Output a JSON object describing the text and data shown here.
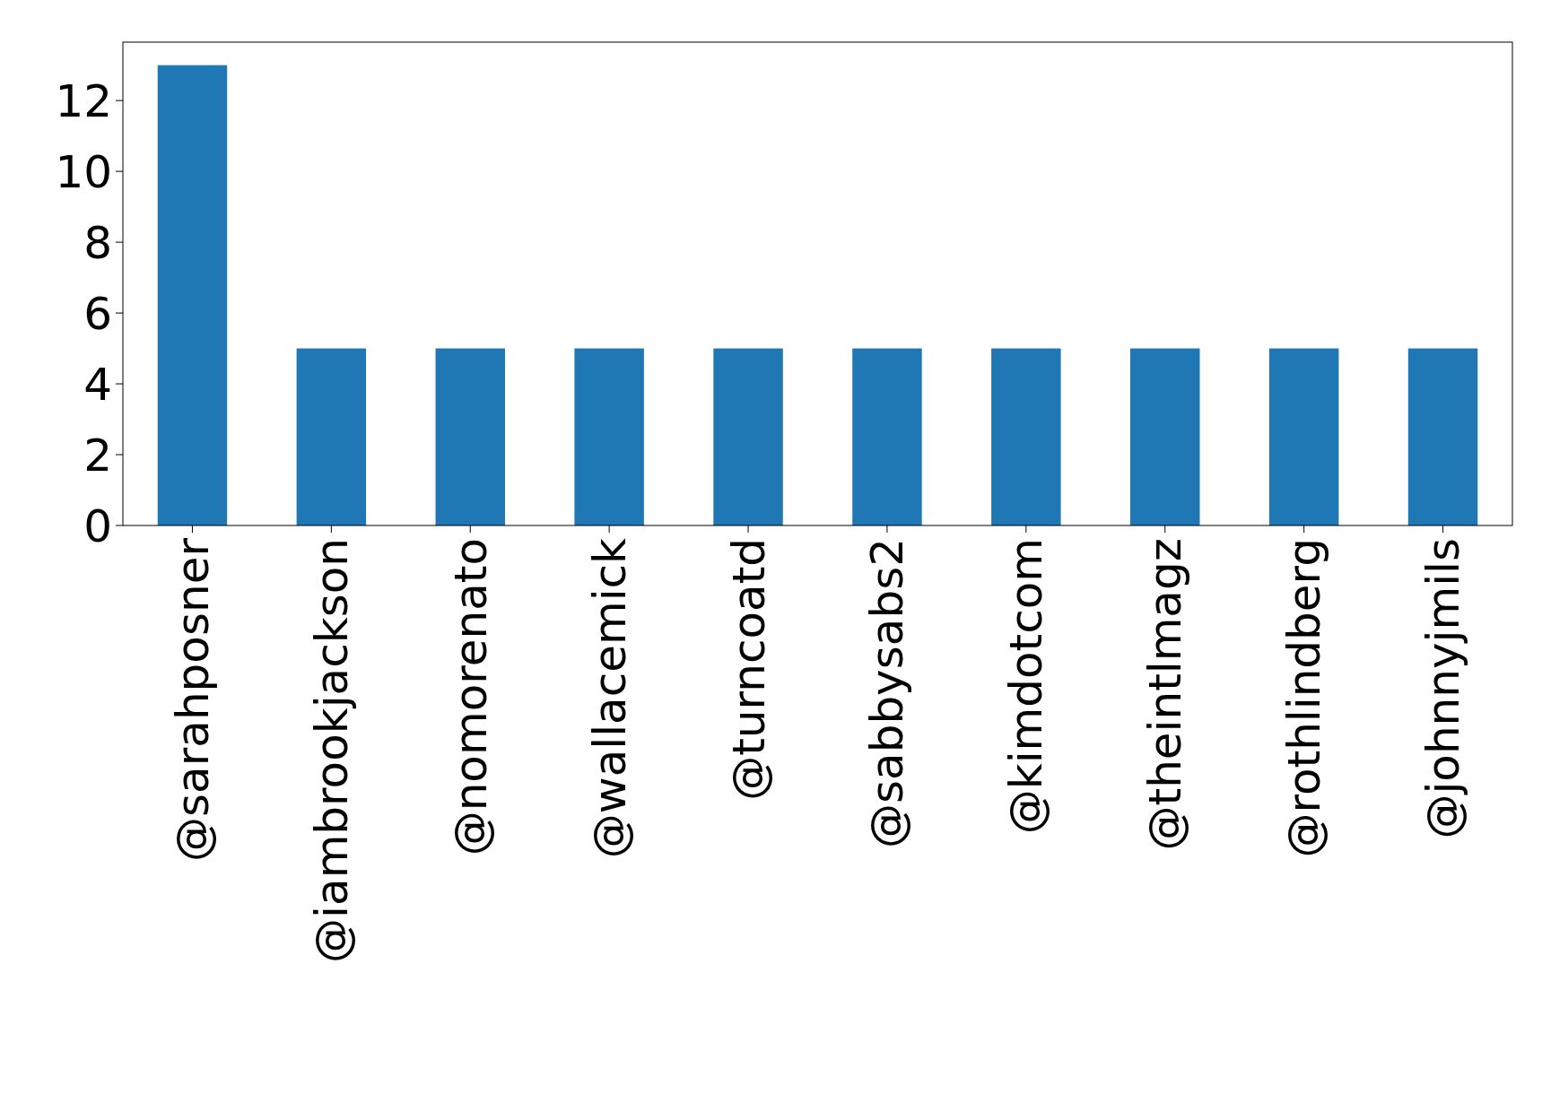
{
  "chart_data": {
    "type": "bar",
    "categories": [
      "@sarahposner",
      "@iambrookjackson",
      "@nomorenato",
      "@wallacemick",
      "@turncoatd",
      "@sabbysabs2",
      "@kimdotcom",
      "@theintlmagz",
      "@rothlindberg",
      "@johnnyjmils"
    ],
    "values": [
      13,
      5,
      5,
      5,
      5,
      5,
      5,
      5,
      5,
      5
    ],
    "color": "#1f77b4",
    "ylim": [
      0,
      13.65
    ],
    "yticks": [
      0,
      2,
      4,
      6,
      8,
      10,
      12
    ]
  }
}
